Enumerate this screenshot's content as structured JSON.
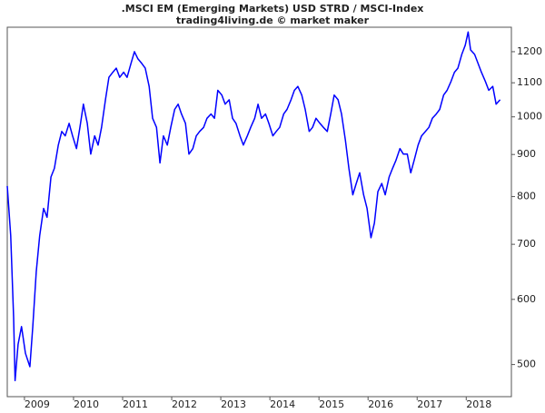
{
  "chart_data": {
    "type": "line",
    "title": ".MSCI EM (Emerging Markets) USD STRD / MSCI-Index",
    "subtitle": "trading4living.de © market maker",
    "x": [
      2008.65,
      2008.72,
      2008.78,
      2008.81,
      2008.87,
      2008.94,
      2009.02,
      2009.11,
      2009.17,
      2009.24,
      2009.31,
      2009.39,
      2009.46,
      2009.54,
      2009.61,
      2009.69,
      2009.76,
      2009.83,
      2009.91,
      2009.98,
      2010.06,
      2010.13,
      2010.2,
      2010.28,
      2010.35,
      2010.43,
      2010.5,
      2010.57,
      2010.65,
      2010.72,
      2010.8,
      2010.87,
      2010.94,
      2011.02,
      2011.09,
      2011.17,
      2011.24,
      2011.31,
      2011.39,
      2011.46,
      2011.54,
      2011.61,
      2011.69,
      2011.76,
      2011.83,
      2011.91,
      2011.98,
      2012.06,
      2012.13,
      2012.2,
      2012.28,
      2012.35,
      2012.43,
      2012.5,
      2012.57,
      2012.65,
      2012.72,
      2012.8,
      2012.87,
      2012.94,
      2013.02,
      2013.09,
      2013.17,
      2013.24,
      2013.31,
      2013.39,
      2013.46,
      2013.54,
      2013.61,
      2013.69,
      2013.76,
      2013.83,
      2013.91,
      2013.98,
      2014.06,
      2014.13,
      2014.2,
      2014.28,
      2014.35,
      2014.43,
      2014.5,
      2014.57,
      2014.65,
      2014.72,
      2014.8,
      2014.87,
      2014.94,
      2015.02,
      2015.09,
      2015.17,
      2015.24,
      2015.31,
      2015.39,
      2015.46,
      2015.54,
      2015.61,
      2015.69,
      2015.76,
      2015.83,
      2015.91,
      2015.98,
      2016.06,
      2016.13,
      2016.2,
      2016.28,
      2016.35,
      2016.43,
      2016.5,
      2016.57,
      2016.65,
      2016.72,
      2016.8,
      2016.87,
      2016.94,
      2017.02,
      2017.09,
      2017.17,
      2017.24,
      2017.31,
      2017.39,
      2017.46,
      2017.54,
      2017.61,
      2017.69,
      2017.76,
      2017.83,
      2017.91,
      2017.98,
      2018.04,
      2018.09,
      2018.17,
      2018.24,
      2018.31,
      2018.39,
      2018.46,
      2018.54,
      2018.61,
      2018.69
    ],
    "series": [
      {
        "name": ".MSCI EM",
        "color": "#0000ff",
        "values": [
          824,
          717,
          570,
          478,
          529,
          556,
          516,
          497,
          556,
          648,
          717,
          774,
          755,
          845,
          866,
          924,
          960,
          948,
          982,
          948,
          915,
          971,
          1036,
          982,
          901,
          948,
          924,
          971,
          1049,
          1117,
          1133,
          1146,
          1117,
          1133,
          1117,
          1161,
          1200,
          1177,
          1161,
          1146,
          1089,
          996,
          971,
          879,
          948,
          924,
          971,
          1021,
          1036,
          1008,
          982,
          901,
          915,
          948,
          960,
          971,
          996,
          1008,
          996,
          1077,
          1063,
          1036,
          1049,
          996,
          982,
          948,
          924,
          948,
          971,
          996,
          1036,
          996,
          1008,
          982,
          948,
          960,
          971,
          1008,
          1021,
          1049,
          1077,
          1089,
          1063,
          1021,
          960,
          971,
          996,
          982,
          971,
          960,
          1008,
          1063,
          1049,
          1008,
          936,
          866,
          804,
          830,
          855,
          804,
          774,
          713,
          743,
          811,
          830,
          804,
          845,
          866,
          886,
          915,
          901,
          901,
          855,
          886,
          924,
          948,
          960,
          971,
          996,
          1008,
          1021,
          1063,
          1077,
          1104,
          1133,
          1146,
          1191,
          1222,
          1268,
          1206,
          1191,
          1161,
          1133,
          1104,
          1077,
          1089,
          1036,
          1049
        ]
      }
    ],
    "xlim": [
      2008.65,
      2018.92
    ],
    "xticks": [
      2009,
      2010,
      2011,
      2012,
      2013,
      2014,
      2015,
      2016,
      2017,
      2018
    ],
    "ylim": [
      457,
      1285
    ],
    "yticks": [
      500,
      600,
      700,
      800,
      900,
      1000,
      1100,
      1200
    ],
    "log_scale": true
  }
}
